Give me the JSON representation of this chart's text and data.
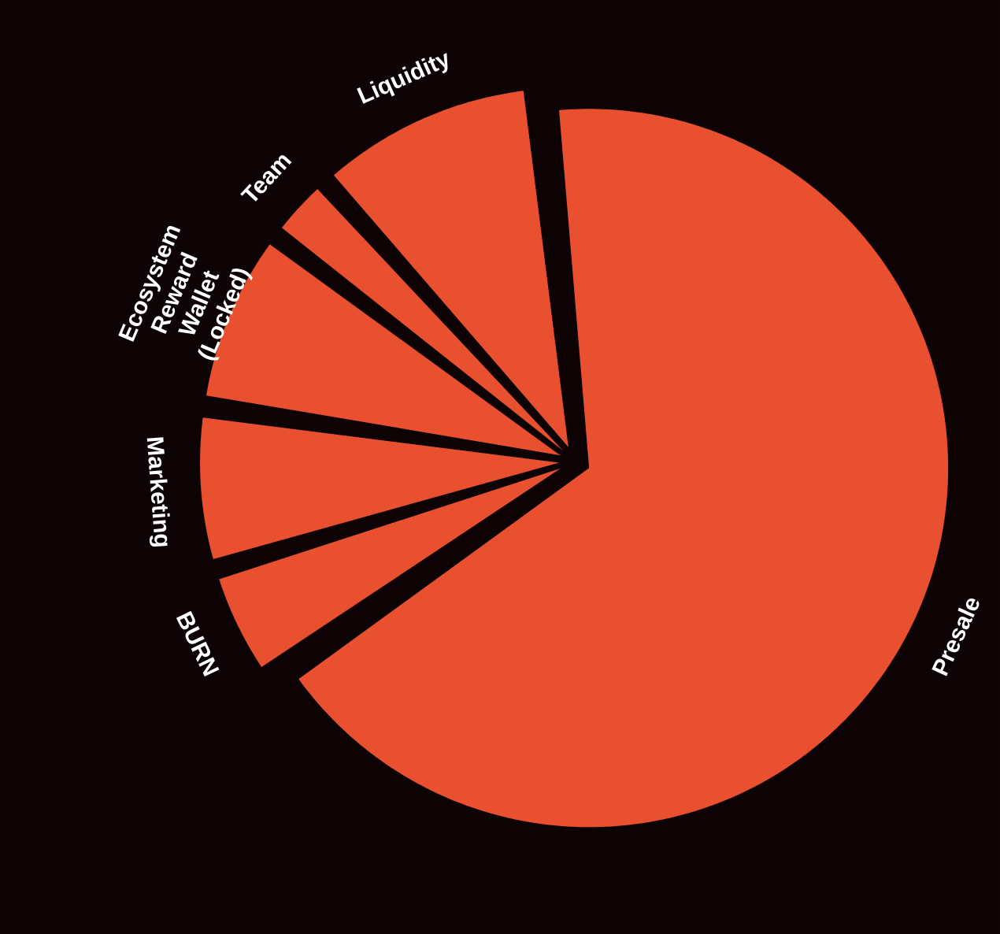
{
  "chart_data": {
    "type": "pie",
    "categories": [
      "Presale",
      "BURN",
      "Marketing",
      "Ecosystem Reward Wallet (Locked)",
      "Team",
      "Liquidity"
    ],
    "values": [
      67,
      5,
      7,
      8,
      3,
      10
    ],
    "colors": [
      "#e8502f",
      "#e8502f",
      "#e8502f",
      "#e8502f",
      "#e8502f",
      "#e8502f"
    ]
  }
}
